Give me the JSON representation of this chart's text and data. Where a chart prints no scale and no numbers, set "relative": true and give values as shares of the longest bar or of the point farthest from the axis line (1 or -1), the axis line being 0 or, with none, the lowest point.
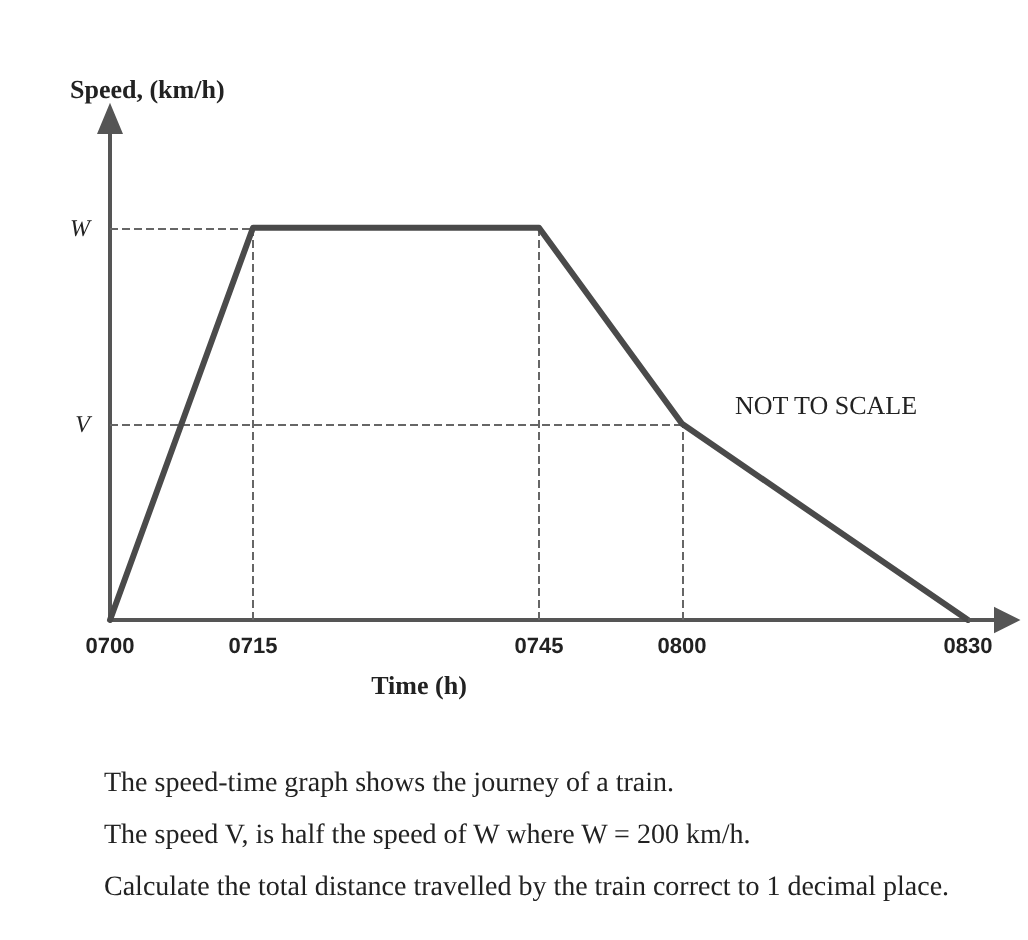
{
  "chart_data": {
    "type": "line",
    "xlabel": "Time (h)",
    "ylabel": "Speed, (km/h)",
    "relative": true,
    "categories": [
      "0700",
      "0715",
      null,
      "0745",
      "0800",
      null,
      "0830"
    ],
    "series": [
      {
        "color": "#4a4a4a",
        "values": [
          0,
          1,
          null,
          1,
          0.5,
          null,
          0
        ]
      }
    ],
    "ref_lines": [
      {
        "axis": "y",
        "value": 1,
        "label": "W",
        "line_style": "dashed",
        "color": "#666666"
      },
      {
        "axis": "y",
        "value": 0.5,
        "label": "V",
        "line_style": "dashed",
        "color": "#666666"
      },
      {
        "axis": "x",
        "value": "0715",
        "line_style": "dashed",
        "color": "#666666"
      },
      {
        "axis": "x",
        "value": "0745",
        "line_style": "dashed",
        "color": "#666666"
      },
      {
        "axis": "x",
        "value": "0800",
        "line_style": "dashed",
        "color": "#666666"
      }
    ],
    "annotations": [
      "NOT TO SCALE",
      "The speed-time graph shows the journey of a train.",
      "The speed V, is half the speed of W where W = 200 km/h.",
      "Calculate the total distance travelled by the train correct to 1 decimal place."
    ],
    "marker": "none",
    "line_style": "solid"
  }
}
